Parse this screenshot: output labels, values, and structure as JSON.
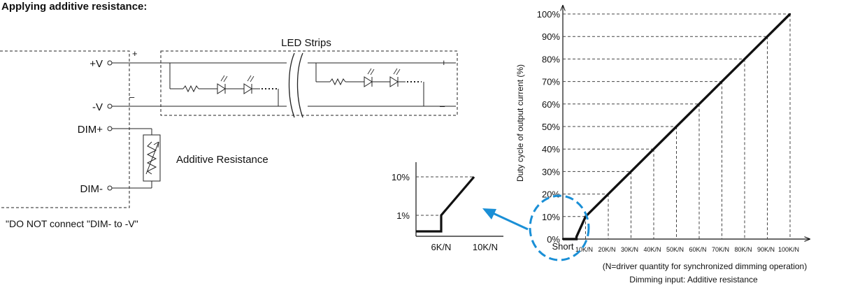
{
  "heading": "Applying additive resistance:",
  "circuit": {
    "strip_title": "LED Strips",
    "plus_v": "+V",
    "minus_v": "-V",
    "dim_plus": "DIM+",
    "dim_minus": "DIM-",
    "plus_sign": "+",
    "minus_sign": "–",
    "resistor_label": "Additive Resistance",
    "warning": "\"DO NOT connect \"DIM- to -V\""
  },
  "inset": {
    "y_ticks": [
      "10%",
      "1%"
    ],
    "x_ticks": [
      "6K/N",
      "10K/N"
    ]
  },
  "chart_data": {
    "type": "line",
    "ylabel": "Duty cycle of output current (%)",
    "xlabel": "Dimming input: Additive resistance",
    "note": "(N=driver quantity for synchronized dimming operation)",
    "x_ticks": [
      "Short",
      "10K/N",
      "20K/N",
      "30K/N",
      "40K/N",
      "50K/N",
      "60K/N",
      "70K/N",
      "80K/N",
      "90K/N",
      "100K/N"
    ],
    "y_ticks": [
      "0%",
      "10%",
      "20%",
      "30%",
      "40%",
      "50%",
      "60%",
      "70%",
      "80%",
      "90%",
      "100%"
    ],
    "series": [
      {
        "x": [
          0,
          6,
          6,
          10,
          20,
          30,
          40,
          50,
          60,
          70,
          80,
          90,
          100
        ],
        "y": [
          0,
          0,
          1,
          10,
          20,
          30,
          40,
          50,
          60,
          70,
          80,
          90,
          100
        ]
      }
    ],
    "xlim": [
      0,
      100
    ],
    "ylim": [
      0,
      100
    ]
  },
  "colors": {
    "line": "#111111",
    "callout": "#1a8fd6"
  }
}
